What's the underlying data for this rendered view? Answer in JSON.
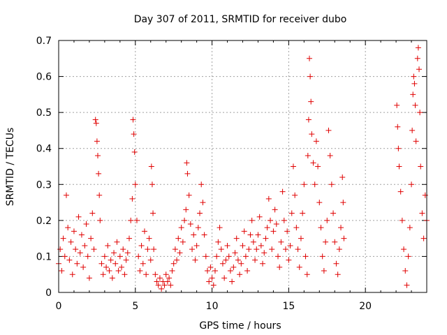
{
  "chart_data": {
    "type": "scatter",
    "title": "Day 307 of 2011, SRMTID for receiver dubo",
    "xlabel": "GPS time / hours",
    "ylabel": "SRMTID / TECUs",
    "xlim": [
      0,
      24
    ],
    "ylim": [
      0,
      0.7
    ],
    "xticks": [
      0,
      5,
      10,
      15,
      20
    ],
    "xtick_labels": [
      "0",
      "5",
      "10",
      "15",
      "20"
    ],
    "yticks": [
      0,
      0.1,
      0.2,
      0.3,
      0.4,
      0.5,
      0.6,
      0.7
    ],
    "ytick_labels": [
      "0",
      "0.1",
      "0.2",
      "0.3",
      "0.4",
      "0.5",
      "0.6",
      "0.7"
    ],
    "grid": true,
    "marker": "+",
    "color": "#e00000",
    "series": [
      {
        "name": "SRMTID",
        "points": [
          [
            0.0,
            0.08
          ],
          [
            0.1,
            0.12
          ],
          [
            0.2,
            0.06
          ],
          [
            0.3,
            0.15
          ],
          [
            0.4,
            0.1
          ],
          [
            0.5,
            0.27
          ],
          [
            0.6,
            0.18
          ],
          [
            0.7,
            0.09
          ],
          [
            0.8,
            0.14
          ],
          [
            0.9,
            0.05
          ],
          [
            1.0,
            0.17
          ],
          [
            1.1,
            0.12
          ],
          [
            1.2,
            0.08
          ],
          [
            1.3,
            0.21
          ],
          [
            1.4,
            0.11
          ],
          [
            1.5,
            0.16
          ],
          [
            1.6,
            0.07
          ],
          [
            1.7,
            0.13
          ],
          [
            1.8,
            0.19
          ],
          [
            1.9,
            0.1
          ],
          [
            2.0,
            0.04
          ],
          [
            2.1,
            0.15
          ],
          [
            2.2,
            0.22
          ],
          [
            2.3,
            0.12
          ],
          [
            2.4,
            0.48
          ],
          [
            2.45,
            0.47
          ],
          [
            2.5,
            0.42
          ],
          [
            2.55,
            0.38
          ],
          [
            2.6,
            0.33
          ],
          [
            2.65,
            0.27
          ],
          [
            2.7,
            0.2
          ],
          [
            2.8,
            0.08
          ],
          [
            2.9,
            0.05
          ],
          [
            3.0,
            0.1
          ],
          [
            3.1,
            0.07
          ],
          [
            3.2,
            0.13
          ],
          [
            3.3,
            0.06
          ],
          [
            3.4,
            0.09
          ],
          [
            3.5,
            0.04
          ],
          [
            3.6,
            0.11
          ],
          [
            3.7,
            0.08
          ],
          [
            3.8,
            0.14
          ],
          [
            3.9,
            0.06
          ],
          [
            4.0,
            0.1
          ],
          [
            4.1,
            0.07
          ],
          [
            4.2,
            0.12
          ],
          [
            4.3,
            0.05
          ],
          [
            4.4,
            0.09
          ],
          [
            4.5,
            0.11
          ],
          [
            4.6,
            0.15
          ],
          [
            4.7,
            0.2
          ],
          [
            4.8,
            0.26
          ],
          [
            4.85,
            0.48
          ],
          [
            4.9,
            0.44
          ],
          [
            4.95,
            0.39
          ],
          [
            5.0,
            0.3
          ],
          [
            5.1,
            0.2
          ],
          [
            5.2,
            0.1
          ],
          [
            5.3,
            0.06
          ],
          [
            5.4,
            0.13
          ],
          [
            5.5,
            0.08
          ],
          [
            5.6,
            0.17
          ],
          [
            5.7,
            0.05
          ],
          [
            5.8,
            0.12
          ],
          [
            5.9,
            0.15
          ],
          [
            6.0,
            0.09
          ],
          [
            6.05,
            0.35
          ],
          [
            6.1,
            0.3
          ],
          [
            6.15,
            0.22
          ],
          [
            6.2,
            0.12
          ],
          [
            6.3,
            0.05
          ],
          [
            6.4,
            0.03
          ],
          [
            6.5,
            0.02
          ],
          [
            6.6,
            0.04
          ],
          [
            6.7,
            0.01
          ],
          [
            6.8,
            0.03
          ],
          [
            6.9,
            0.02
          ],
          [
            7.0,
            0.05
          ],
          [
            7.1,
            0.03
          ],
          [
            7.2,
            0.04
          ],
          [
            7.3,
            0.02
          ],
          [
            7.4,
            0.06
          ],
          [
            7.5,
            0.08
          ],
          [
            7.6,
            0.12
          ],
          [
            7.7,
            0.09
          ],
          [
            7.8,
            0.15
          ],
          [
            7.9,
            0.11
          ],
          [
            8.0,
            0.18
          ],
          [
            8.1,
            0.14
          ],
          [
            8.2,
            0.2
          ],
          [
            8.3,
            0.23
          ],
          [
            8.35,
            0.36
          ],
          [
            8.4,
            0.33
          ],
          [
            8.5,
            0.27
          ],
          [
            8.6,
            0.19
          ],
          [
            8.7,
            0.12
          ],
          [
            8.8,
            0.16
          ],
          [
            8.9,
            0.09
          ],
          [
            9.0,
            0.13
          ],
          [
            9.1,
            0.18
          ],
          [
            9.2,
            0.22
          ],
          [
            9.3,
            0.3
          ],
          [
            9.4,
            0.25
          ],
          [
            9.5,
            0.16
          ],
          [
            9.6,
            0.1
          ],
          [
            9.7,
            0.06
          ],
          [
            9.8,
            0.03
          ],
          [
            9.9,
            0.07
          ],
          [
            10.0,
            0.04
          ],
          [
            10.1,
            0.02
          ],
          [
            10.2,
            0.06
          ],
          [
            10.3,
            0.1
          ],
          [
            10.4,
            0.14
          ],
          [
            10.5,
            0.18
          ],
          [
            10.6,
            0.12
          ],
          [
            10.7,
            0.08
          ],
          [
            10.8,
            0.04
          ],
          [
            10.9,
            0.09
          ],
          [
            11.0,
            0.13
          ],
          [
            11.1,
            0.1
          ],
          [
            11.2,
            0.06
          ],
          [
            11.3,
            0.03
          ],
          [
            11.4,
            0.07
          ],
          [
            11.5,
            0.11
          ],
          [
            11.6,
            0.15
          ],
          [
            11.7,
            0.09
          ],
          [
            11.8,
            0.05
          ],
          [
            11.9,
            0.08
          ],
          [
            12.0,
            0.13
          ],
          [
            12.1,
            0.17
          ],
          [
            12.2,
            0.1
          ],
          [
            12.3,
            0.06
          ],
          [
            12.4,
            0.12
          ],
          [
            12.5,
            0.16
          ],
          [
            12.6,
            0.2
          ],
          [
            12.7,
            0.14
          ],
          [
            12.8,
            0.09
          ],
          [
            12.9,
            0.12
          ],
          [
            13.0,
            0.16
          ],
          [
            13.1,
            0.21
          ],
          [
            13.2,
            0.13
          ],
          [
            13.3,
            0.08
          ],
          [
            13.4,
            0.11
          ],
          [
            13.5,
            0.15
          ],
          [
            13.6,
            0.18
          ],
          [
            13.7,
            0.26
          ],
          [
            13.8,
            0.2
          ],
          [
            13.9,
            0.12
          ],
          [
            14.0,
            0.17
          ],
          [
            14.1,
            0.23
          ],
          [
            14.2,
            0.19
          ],
          [
            14.3,
            0.1
          ],
          [
            14.4,
            0.07
          ],
          [
            14.5,
            0.14
          ],
          [
            14.6,
            0.28
          ],
          [
            14.7,
            0.2
          ],
          [
            14.8,
            0.12
          ],
          [
            14.9,
            0.17
          ],
          [
            15.0,
            0.09
          ],
          [
            15.1,
            0.13
          ],
          [
            15.2,
            0.22
          ],
          [
            15.3,
            0.35
          ],
          [
            15.4,
            0.27
          ],
          [
            15.5,
            0.18
          ],
          [
            15.6,
            0.12
          ],
          [
            15.7,
            0.07
          ],
          [
            15.8,
            0.15
          ],
          [
            15.9,
            0.22
          ],
          [
            16.0,
            0.3
          ],
          [
            16.1,
            0.1
          ],
          [
            16.2,
            0.05
          ],
          [
            16.25,
            0.38
          ],
          [
            16.3,
            0.48
          ],
          [
            16.35,
            0.65
          ],
          [
            16.4,
            0.6
          ],
          [
            16.45,
            0.53
          ],
          [
            16.5,
            0.44
          ],
          [
            16.6,
            0.36
          ],
          [
            16.7,
            0.3
          ],
          [
            16.8,
            0.42
          ],
          [
            16.9,
            0.35
          ],
          [
            17.0,
            0.25
          ],
          [
            17.1,
            0.18
          ],
          [
            17.2,
            0.1
          ],
          [
            17.3,
            0.06
          ],
          [
            17.4,
            0.14
          ],
          [
            17.5,
            0.2
          ],
          [
            17.6,
            0.45
          ],
          [
            17.7,
            0.38
          ],
          [
            17.8,
            0.3
          ],
          [
            17.9,
            0.22
          ],
          [
            18.0,
            0.14
          ],
          [
            18.1,
            0.08
          ],
          [
            18.2,
            0.05
          ],
          [
            18.3,
            0.12
          ],
          [
            18.4,
            0.18
          ],
          [
            18.5,
            0.32
          ],
          [
            18.55,
            0.25
          ],
          [
            18.6,
            0.15
          ],
          [
            22.05,
            0.52
          ],
          [
            22.1,
            0.46
          ],
          [
            22.15,
            0.4
          ],
          [
            22.2,
            0.35
          ],
          [
            22.3,
            0.28
          ],
          [
            22.4,
            0.2
          ],
          [
            22.5,
            0.12
          ],
          [
            22.6,
            0.06
          ],
          [
            22.7,
            0.02
          ],
          [
            22.8,
            0.1
          ],
          [
            22.9,
            0.18
          ],
          [
            23.0,
            0.3
          ],
          [
            23.05,
            0.45
          ],
          [
            23.1,
            0.55
          ],
          [
            23.15,
            0.6
          ],
          [
            23.2,
            0.58
          ],
          [
            23.25,
            0.52
          ],
          [
            23.3,
            0.42
          ],
          [
            23.4,
            0.65
          ],
          [
            23.45,
            0.68
          ],
          [
            23.5,
            0.62
          ],
          [
            23.55,
            0.5
          ],
          [
            23.6,
            0.35
          ],
          [
            23.7,
            0.22
          ],
          [
            23.8,
            0.15
          ],
          [
            23.9,
            0.27
          ],
          [
            24.0,
            0.2
          ]
        ]
      }
    ]
  }
}
